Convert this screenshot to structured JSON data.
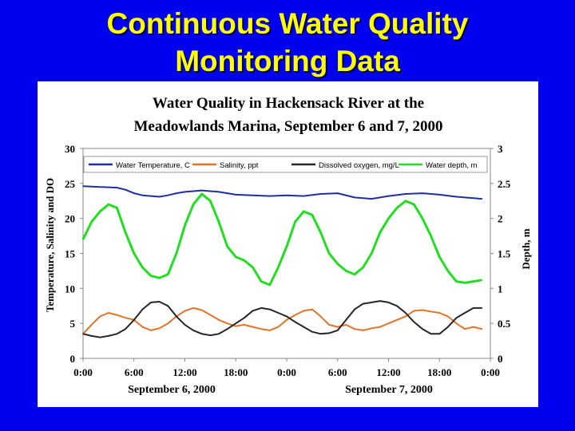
{
  "slide": {
    "title_line1": "Continuous Water Quality",
    "title_line2": "Monitoring Data",
    "background_color": "#0000f0",
    "title_color": "#ffff00"
  },
  "chart_data": {
    "type": "line",
    "title_line1": "Water Quality in Hackensack River at the",
    "title_line2": "Meadowlands Marina, September 6 and 7, 2000",
    "ylabel": "Temperature, Salinity and DO",
    "y2label": "Depth, m",
    "ylim": [
      0,
      30
    ],
    "y2lim": [
      0,
      3
    ],
    "yticks": [
      "0",
      "5",
      "10",
      "15",
      "20",
      "25",
      "30"
    ],
    "y2ticks": [
      "0",
      "0.5",
      "1",
      "1.5",
      "2",
      "2.5",
      "3"
    ],
    "xlim_hours": [
      0,
      48
    ],
    "xticks": [
      "0:00",
      "6:00",
      "12:00",
      "18:00",
      "0:00",
      "6:00",
      "12:00",
      "18:00",
      "0:00"
    ],
    "date_labels": [
      "September 6, 2000",
      "September 7, 2000"
    ],
    "legend_position": "top",
    "series": [
      {
        "name": "Water Temperature, C",
        "axis": "left",
        "color": "#1f2f9f",
        "x": [
          0,
          2,
          4,
          5,
          6,
          7,
          8,
          9,
          10,
          11,
          12,
          14,
          16,
          18,
          20,
          22,
          24,
          26,
          28,
          30,
          32,
          34,
          36,
          38,
          40,
          42,
          44,
          46,
          47
        ],
        "y": [
          24.6,
          24.5,
          24.4,
          24.1,
          23.6,
          23.3,
          23.2,
          23.1,
          23.3,
          23.6,
          23.8,
          24.0,
          23.8,
          23.4,
          23.3,
          23.2,
          23.3,
          23.2,
          23.5,
          23.6,
          23.0,
          22.8,
          23.2,
          23.5,
          23.6,
          23.4,
          23.1,
          22.9,
          22.8
        ]
      },
      {
        "name": "Salinity, ppt",
        "axis": "left",
        "color": "#e0742a",
        "x": [
          0,
          1,
          2,
          3,
          4,
          5,
          6,
          7,
          8,
          9,
          10,
          11,
          12,
          13,
          14,
          15,
          16,
          17,
          18,
          19,
          20,
          21,
          22,
          23,
          24,
          25,
          26,
          27,
          28,
          29,
          30,
          31,
          32,
          33,
          34,
          35,
          36,
          37,
          38,
          39,
          40,
          41,
          42,
          43,
          44,
          45,
          46,
          47
        ],
        "y": [
          3.5,
          4.8,
          6.0,
          6.5,
          6.2,
          5.8,
          5.5,
          4.5,
          4.0,
          4.3,
          5.0,
          6.0,
          6.8,
          7.2,
          6.9,
          6.2,
          5.5,
          5.0,
          4.6,
          4.8,
          4.5,
          4.2,
          4.0,
          4.5,
          5.5,
          6.2,
          6.8,
          7.0,
          6.0,
          4.8,
          4.5,
          4.8,
          4.2,
          4.0,
          4.3,
          4.5,
          5.0,
          5.5,
          6.0,
          6.8,
          6.9,
          6.7,
          6.5,
          6.0,
          5.0,
          4.2,
          4.5,
          4.2
        ]
      },
      {
        "name": "Dissolved oxygen, mg/L",
        "axis": "left",
        "color": "#262626",
        "x": [
          0,
          1,
          2,
          3,
          4,
          5,
          6,
          7,
          8,
          9,
          10,
          11,
          12,
          13,
          14,
          15,
          16,
          17,
          18,
          19,
          20,
          21,
          22,
          23,
          24,
          25,
          26,
          27,
          28,
          29,
          30,
          31,
          32,
          33,
          34,
          35,
          36,
          37,
          38,
          39,
          40,
          41,
          42,
          43,
          44,
          45,
          46,
          47
        ],
        "y": [
          3.5,
          3.2,
          3.0,
          3.2,
          3.5,
          4.2,
          5.5,
          7.0,
          8.0,
          8.1,
          7.5,
          6.0,
          4.8,
          4.0,
          3.5,
          3.3,
          3.5,
          4.2,
          5.0,
          5.8,
          6.8,
          7.2,
          7.0,
          6.5,
          6.0,
          5.2,
          4.5,
          3.8,
          3.5,
          3.6,
          4.0,
          5.5,
          7.0,
          7.8,
          8.0,
          8.2,
          8.0,
          7.5,
          6.5,
          5.2,
          4.2,
          3.5,
          3.5,
          4.5,
          5.8,
          6.5,
          7.2,
          7.2
        ]
      },
      {
        "name": "Water depth, m",
        "axis": "right",
        "color": "#22dd22",
        "x": [
          0,
          1,
          2,
          3,
          4,
          5,
          6,
          7,
          8,
          9,
          10,
          11,
          12,
          13,
          14,
          15,
          16,
          17,
          18,
          19,
          20,
          21,
          22,
          23,
          24,
          25,
          26,
          27,
          28,
          29,
          30,
          31,
          32,
          33,
          34,
          35,
          36,
          37,
          38,
          39,
          40,
          41,
          42,
          43,
          44,
          45,
          46,
          47
        ],
        "y": [
          1.7,
          1.95,
          2.1,
          2.2,
          2.15,
          1.8,
          1.5,
          1.3,
          1.18,
          1.15,
          1.2,
          1.5,
          1.9,
          2.2,
          2.35,
          2.25,
          1.95,
          1.6,
          1.45,
          1.4,
          1.3,
          1.1,
          1.05,
          1.3,
          1.6,
          1.95,
          2.1,
          2.05,
          1.8,
          1.5,
          1.35,
          1.25,
          1.2,
          1.3,
          1.5,
          1.8,
          2.0,
          2.15,
          2.25,
          2.2,
          2.0,
          1.75,
          1.45,
          1.25,
          1.1,
          1.08,
          1.1,
          1.12
        ]
      }
    ]
  }
}
